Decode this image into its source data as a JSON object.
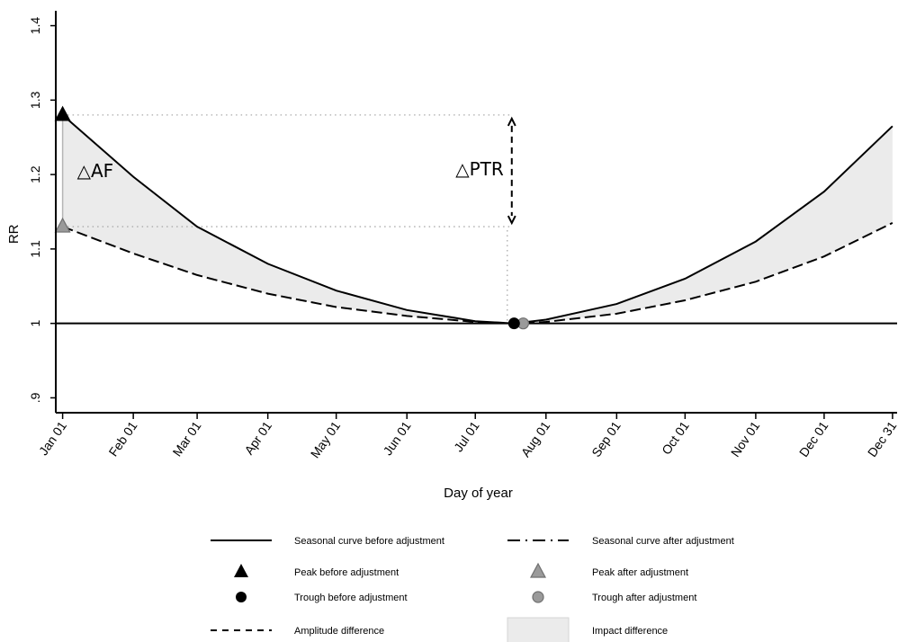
{
  "chart_data": {
    "type": "line",
    "xlabel": "Day of year",
    "ylabel": "RR",
    "ylim": [
      0.88,
      1.42
    ],
    "xlim": [
      -2,
      367
    ],
    "y_ticks": [
      {
        "value": 0.9,
        "label": ".9"
      },
      {
        "value": 1.0,
        "label": "1"
      },
      {
        "value": 1.1,
        "label": "1.1"
      },
      {
        "value": 1.2,
        "label": "1.2"
      },
      {
        "value": 1.3,
        "label": "1.3"
      },
      {
        "value": 1.4,
        "label": "1.4"
      }
    ],
    "x_ticks": [
      {
        "day": 1,
        "label": "Jan 01"
      },
      {
        "day": 32,
        "label": "Feb 01"
      },
      {
        "day": 60,
        "label": "Mar 01"
      },
      {
        "day": 91,
        "label": "Apr 01"
      },
      {
        "day": 121,
        "label": "May 01"
      },
      {
        "day": 152,
        "label": "Jun 01"
      },
      {
        "day": 182,
        "label": "Jul 01"
      },
      {
        "day": 213,
        "label": "Aug 01"
      },
      {
        "day": 244,
        "label": "Sep 01"
      },
      {
        "day": 274,
        "label": "Oct 01"
      },
      {
        "day": 305,
        "label": "Nov 01"
      },
      {
        "day": 335,
        "label": "Dec 01"
      },
      {
        "day": 365,
        "label": "Dec 31"
      }
    ],
    "reference_line": {
      "y": 1.0
    },
    "series": [
      {
        "name": "Seasonal curve before adjustment",
        "style": "solid",
        "points": [
          [
            1,
            1.28
          ],
          [
            32,
            1.197
          ],
          [
            60,
            1.13
          ],
          [
            91,
            1.08
          ],
          [
            121,
            1.044
          ],
          [
            152,
            1.018
          ],
          [
            182,
            1.003
          ],
          [
            199,
            1.0
          ],
          [
            213,
            1.005
          ],
          [
            244,
            1.026
          ],
          [
            274,
            1.06
          ],
          [
            305,
            1.11
          ],
          [
            335,
            1.177
          ],
          [
            365,
            1.265
          ]
        ]
      },
      {
        "name": "Seasonal curve after adjustment",
        "style": "longdash",
        "points": [
          [
            1,
            1.13
          ],
          [
            32,
            1.094
          ],
          [
            60,
            1.065
          ],
          [
            91,
            1.04
          ],
          [
            121,
            1.022
          ],
          [
            152,
            1.01
          ],
          [
            182,
            1.002
          ],
          [
            203,
            1.0
          ],
          [
            213,
            1.002
          ],
          [
            244,
            1.013
          ],
          [
            274,
            1.031
          ],
          [
            305,
            1.056
          ],
          [
            335,
            1.09
          ],
          [
            365,
            1.135
          ]
        ]
      }
    ],
    "markers": {
      "peak_before": {
        "x": 1,
        "y": 1.28
      },
      "peak_after": {
        "x": 1,
        "y": 1.13
      },
      "trough_before": {
        "x": 199,
        "y": 1.0
      },
      "trough_after": {
        "x": 203,
        "y": 1.0
      }
    },
    "guides": {
      "peak_line_y": 1.28,
      "adjusted_line_y": 1.13,
      "ptr_x": 198,
      "guide_end_x": 197
    },
    "annotations": {
      "af": "△AF",
      "ptr": "△PTR"
    },
    "legend": {
      "position": "bottom",
      "items": [
        {
          "label": "Seasonal curve before adjustment",
          "key": "solid"
        },
        {
          "label": "Seasonal curve after adjustment",
          "key": "longdash"
        },
        {
          "label": "Peak before adjustment",
          "key": "tri-black"
        },
        {
          "label": "Peak after adjustment",
          "key": "tri-gray"
        },
        {
          "label": "Trough before adjustment",
          "key": "circ-black"
        },
        {
          "label": "Trough after adjustment",
          "key": "circ-gray"
        },
        {
          "label": "Amplitude difference",
          "key": "shortdash"
        },
        {
          "label": "Impact difference",
          "key": "fillbox"
        }
      ]
    },
    "colors": {
      "line": "#000000",
      "fill": "#ebebeb",
      "gray_marker": "#9a9a9a",
      "guide": "#aaaaaa"
    }
  }
}
